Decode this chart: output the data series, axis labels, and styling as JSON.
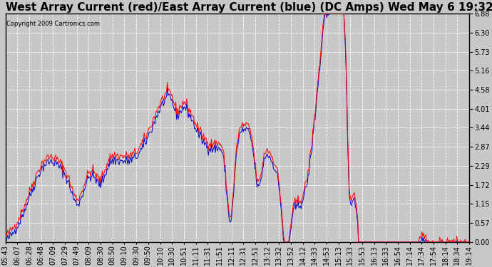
{
  "title": "West Array Current (red)/East Array Current (blue) (DC Amps) Wed May 6 19:32",
  "copyright": "Copyright 2009 Cartronics.com",
  "ylabel_ticks": [
    0.0,
    0.57,
    1.15,
    1.72,
    2.29,
    2.87,
    3.44,
    4.01,
    4.58,
    5.16,
    5.73,
    6.3,
    6.88
  ],
  "ymin": 0.0,
  "ymax": 6.88,
  "x_labels": [
    "05:43",
    "06:07",
    "06:28",
    "06:48",
    "07:09",
    "07:29",
    "07:49",
    "08:09",
    "08:30",
    "08:50",
    "09:10",
    "09:30",
    "09:50",
    "10:10",
    "10:30",
    "10:51",
    "11:11",
    "11:31",
    "11:51",
    "12:11",
    "12:31",
    "12:51",
    "13:12",
    "13:32",
    "13:52",
    "14:12",
    "14:33",
    "14:53",
    "15:13",
    "15:33",
    "15:53",
    "16:13",
    "16:33",
    "16:54",
    "17:14",
    "17:34",
    "17:54",
    "18:14",
    "18:34",
    "19:14"
  ],
  "background_color": "#c8c8c8",
  "plot_bg_color": "#c8c8c8",
  "grid_color": "#ffffff",
  "red_color": "#ff0000",
  "blue_color": "#0000cc",
  "title_font_size": 11,
  "tick_font_size": 7,
  "figwidth": 6.9,
  "figheight": 3.75,
  "dpi": 100
}
